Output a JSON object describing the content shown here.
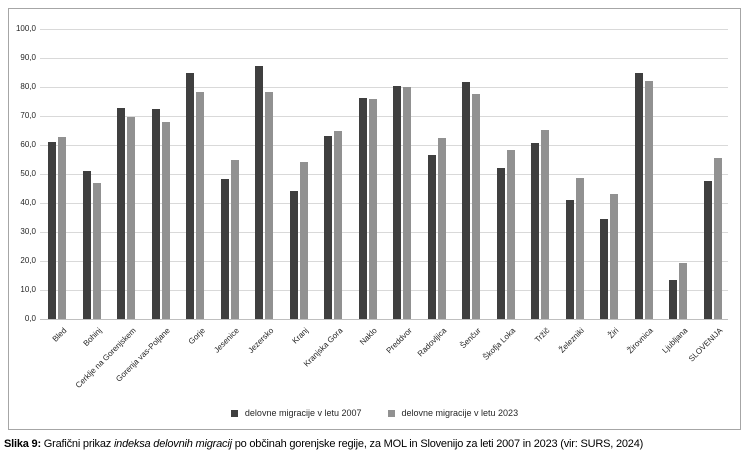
{
  "chart_data": {
    "type": "bar",
    "categories": [
      "Bled",
      "Bohinj",
      "Cerklje na Gorenjskem",
      "Gorenja vas-Poljane",
      "Gorje",
      "Jesenice",
      "Jezersko",
      "Kranj",
      "Kranjska Gora",
      "Naklo",
      "Preddvor",
      "Radovljica",
      "Šenčur",
      "Škofja Loka",
      "Tržič",
      "Železniki",
      "Žiri",
      "Žirovnica",
      "Ljubljana",
      "SLOVENIJA"
    ],
    "series": [
      {
        "name": "delovne migracije v letu 2007",
        "color": "#3f3f3f",
        "values": [
          61.1,
          51.1,
          72.9,
          72.3,
          84.8,
          48.3,
          87.1,
          44.0,
          63.2,
          76.3,
          80.3,
          56.4,
          81.8,
          51.9,
          60.6,
          40.9,
          34.6,
          84.9,
          13.4,
          47.5
        ]
      },
      {
        "name": "delovne migracije v letu 2023",
        "color": "#919191",
        "values": [
          62.8,
          46.9,
          69.7,
          67.9,
          78.2,
          54.7,
          78.3,
          54.1,
          64.8,
          75.8,
          80.1,
          62.5,
          77.6,
          58.2,
          65.1,
          48.7,
          43.0,
          82.0,
          19.4,
          55.5
        ]
      }
    ],
    "title": "",
    "xlabel": "",
    "ylabel": "",
    "ylim": [
      0,
      100
    ],
    "ytick_step": 10,
    "ytick_labels": [
      "0,0",
      "10,0",
      "20,0",
      "30,0",
      "40,0",
      "50,0",
      "60,0",
      "70,0",
      "80,0",
      "90,0",
      "100,0"
    ],
    "grid": true,
    "legend_position": "bottom"
  },
  "caption": {
    "label": "Slika 9:",
    "text_before_italic": " Grafični prikaz ",
    "italic_phrase": "indeksa delovnih migracij",
    "text_after_italic": " po občinah gorenjske regije, za MOL in Slovenijo za leti 2007 in 2023 (vir: SURS, 2024)"
  }
}
